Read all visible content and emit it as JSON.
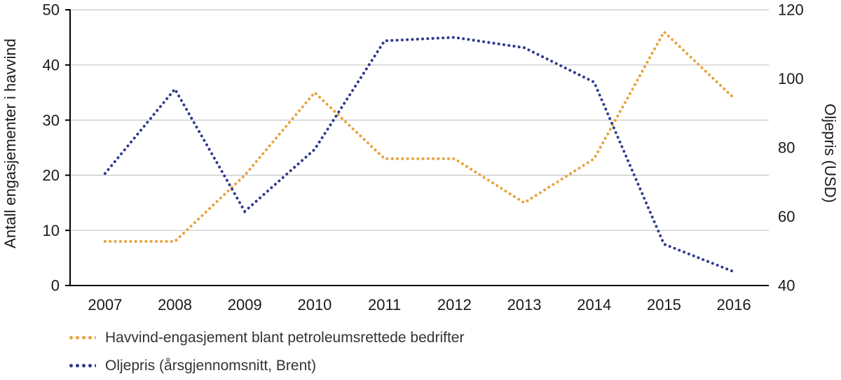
{
  "chart_data": {
    "type": "line",
    "line_style": "dotted",
    "grid": true,
    "legend_position": "bottom-left",
    "x": [
      "2007",
      "2008",
      "2009",
      "2010",
      "2011",
      "2012",
      "2013",
      "2014",
      "2015",
      "2016"
    ],
    "series": [
      {
        "name": "Havvind-engasjement blant petroleumsrettede bedrifter",
        "axis": "left",
        "color": "#E8A33D",
        "values": [
          8,
          8,
          20,
          35,
          23,
          23,
          15,
          23,
          46,
          34
        ]
      },
      {
        "name": "Oljepris (årsgjennomsnitt, Brent)",
        "axis": "right",
        "color": "#2F3A8F",
        "values": [
          72.5,
          97,
          61.5,
          79.5,
          111,
          112,
          109,
          99,
          52,
          44
        ]
      }
    ],
    "left_axis": {
      "label": "Antall engasjementer i havvind",
      "min": 0,
      "max": 50,
      "ticks": [
        0,
        10,
        20,
        30,
        40,
        50
      ]
    },
    "right_axis": {
      "label": "Oljepris (USD)",
      "min": 40,
      "max": 120,
      "ticks": [
        40,
        60,
        80,
        100,
        120
      ]
    }
  },
  "style": {
    "grid_color": "#c7c7c7",
    "spine_color": "#000000",
    "tick_text_color": "#1a1a1a",
    "legend_text_color": "#333333"
  }
}
